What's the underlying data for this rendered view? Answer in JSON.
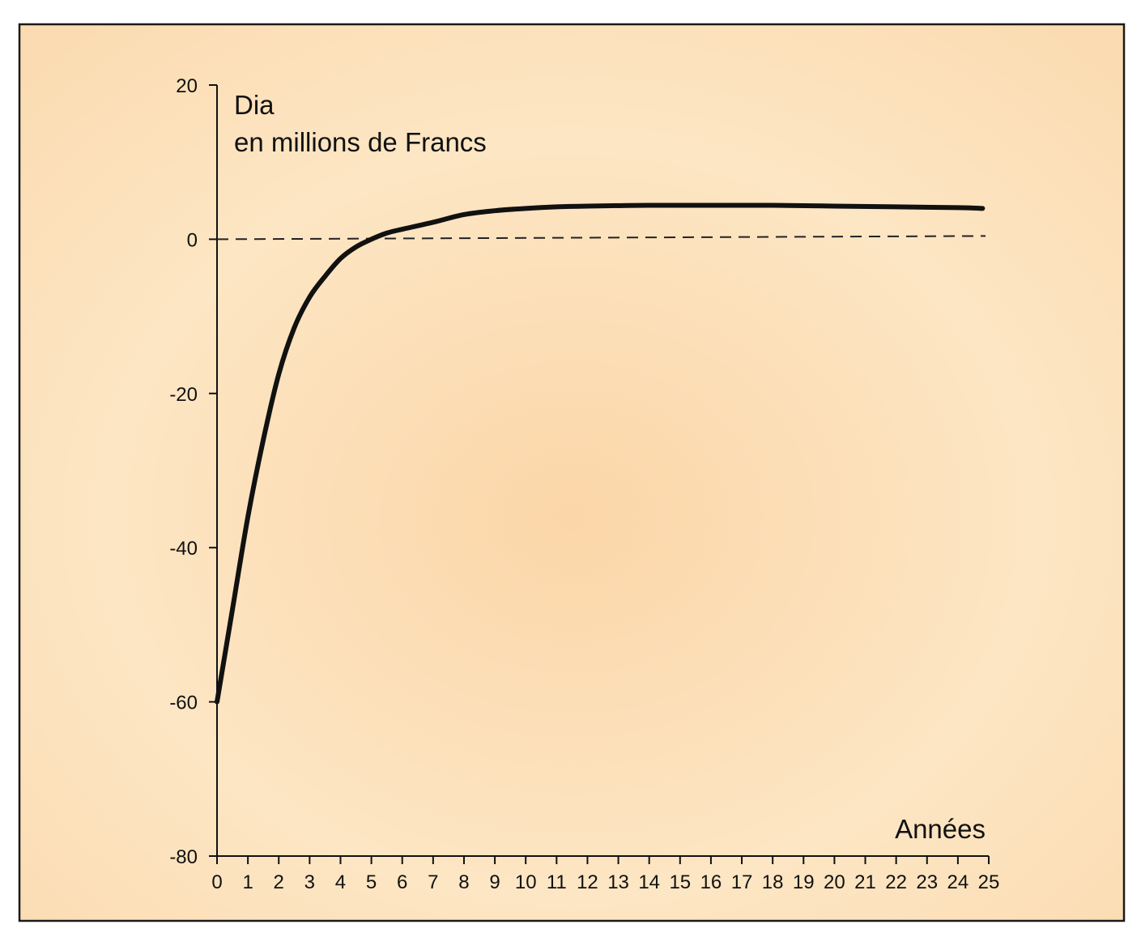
{
  "chart_data": {
    "type": "line",
    "title": "",
    "ylabel_line1": "Dia",
    "ylabel_line2": "en millions de Francs",
    "xlabel": "Années",
    "xlim": [
      0,
      25
    ],
    "ylim": [
      -80,
      20
    ],
    "x_ticks": [
      0,
      1,
      2,
      3,
      4,
      5,
      6,
      7,
      8,
      9,
      10,
      11,
      12,
      13,
      14,
      15,
      16,
      17,
      18,
      19,
      20,
      21,
      22,
      23,
      24,
      25
    ],
    "y_ticks": [
      20,
      0,
      -20,
      -40,
      -60,
      -80
    ],
    "reference_line": {
      "y": 0,
      "style": "dashed"
    },
    "grid": false,
    "legend": "none",
    "series": [
      {
        "x": [
          0,
          0.5,
          1,
          1.5,
          2,
          2.5,
          3,
          3.5,
          4,
          4.5,
          5,
          5.5,
          6,
          7,
          8,
          9,
          10,
          11,
          12,
          14,
          16,
          18,
          20,
          22,
          24,
          24.8
        ],
        "y": [
          -60,
          -48,
          -36,
          -26,
          -17.5,
          -11.5,
          -7.5,
          -4.8,
          -2.5,
          -1,
          0,
          0.8,
          1.3,
          2.2,
          3.2,
          3.7,
          4.0,
          4.2,
          4.3,
          4.4,
          4.4,
          4.4,
          4.3,
          4.2,
          4.1,
          4.0
        ]
      }
    ],
    "colors": {
      "background_light": "#fde8c6",
      "background_warm": "#f9cfa0",
      "frame": "#1a1a1a",
      "line": "#111111"
    }
  }
}
